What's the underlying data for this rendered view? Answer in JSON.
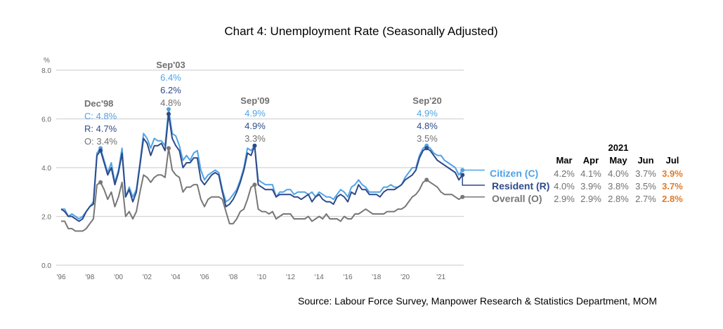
{
  "chart_data": {
    "type": "line",
    "title": "Chart 4: Unemployment Rate (Seasonally Adjusted)",
    "ylabel": "%",
    "ylim": [
      0,
      8
    ],
    "yticks": [
      "0.0",
      "2.0",
      "4.0",
      "6.0",
      "8.0"
    ],
    "ytick_values": [
      0,
      2,
      4,
      6,
      8
    ],
    "grid": true,
    "x_note": "quarterly 1996Q1-2019Q4, monthly Mar 2020-Jul 2021",
    "xticks": [
      {
        "label": "'96",
        "index": 0
      },
      {
        "label": "'98",
        "index": 8
      },
      {
        "label": "'00",
        "index": 16
      },
      {
        "label": "'02",
        "index": 24
      },
      {
        "label": "'04",
        "index": 32
      },
      {
        "label": "'06",
        "index": 40
      },
      {
        "label": "'08",
        "index": 48
      },
      {
        "label": "'10",
        "index": 56
      },
      {
        "label": "'12",
        "index": 64
      },
      {
        "label": "'14",
        "index": 72
      },
      {
        "label": "'16",
        "index": 80
      },
      {
        "label": "'18",
        "index": 88
      },
      {
        "label": "'20",
        "index": 96
      },
      {
        "label": "'21",
        "index": 106
      }
    ],
    "series": [
      {
        "name": "Citizen (C)",
        "color": "#4fa3e6",
        "values": [
          2.3,
          2.3,
          2.0,
          2.1,
          2.0,
          1.9,
          2.0,
          2.2,
          2.4,
          2.6,
          4.6,
          4.8,
          4.3,
          3.8,
          4.2,
          3.4,
          3.9,
          4.8,
          2.8,
          3.2,
          2.8,
          3.1,
          4.2,
          5.4,
          5.2,
          4.8,
          5.2,
          5.1,
          5.1,
          4.9,
          6.4,
          5.4,
          5.3,
          4.9,
          4.3,
          4.5,
          4.3,
          4.6,
          4.7,
          3.9,
          3.5,
          3.7,
          3.8,
          3.9,
          3.8,
          3.1,
          2.6,
          2.7,
          2.9,
          3.1,
          3.5,
          4.0,
          4.8,
          4.7,
          4.9,
          3.5,
          3.4,
          3.3,
          3.3,
          3.3,
          2.8,
          3.0,
          3.0,
          3.1,
          3.1,
          2.9,
          3.0,
          3.0,
          3.0,
          2.9,
          3.0,
          2.8,
          3.0,
          2.9,
          2.8,
          2.8,
          2.7,
          2.9,
          3.1,
          3.0,
          2.8,
          3.2,
          3.3,
          3.5,
          3.3,
          3.2,
          3.0,
          3.0,
          3.0,
          3.0,
          3.2,
          3.2,
          3.3,
          3.2,
          3.2,
          3.3,
          3.6,
          3.8,
          4.0,
          4.0,
          4.5,
          4.8,
          4.9,
          4.8,
          4.6,
          4.5,
          4.5,
          4.3,
          4.2,
          4.1,
          4.0,
          3.7,
          3.9
        ]
      },
      {
        "name": "Resident (R)",
        "color": "#2e4a8a",
        "values": [
          2.3,
          2.2,
          2.0,
          2.0,
          1.9,
          1.8,
          1.9,
          2.2,
          2.4,
          2.5,
          4.5,
          4.7,
          4.2,
          3.7,
          4.0,
          3.3,
          3.8,
          4.6,
          2.8,
          3.1,
          2.6,
          3.0,
          4.1,
          5.2,
          5.0,
          4.5,
          4.9,
          4.9,
          5.0,
          4.7,
          6.2,
          5.2,
          4.9,
          4.7,
          4.0,
          4.2,
          4.2,
          4.4,
          4.4,
          3.5,
          3.3,
          3.5,
          3.7,
          3.8,
          3.7,
          3.0,
          2.4,
          2.5,
          2.7,
          3.0,
          3.4,
          3.9,
          4.6,
          4.5,
          4.9,
          3.3,
          3.2,
          3.1,
          3.1,
          3.1,
          2.8,
          2.9,
          2.9,
          2.9,
          2.9,
          2.8,
          2.8,
          2.7,
          2.8,
          2.9,
          2.6,
          2.8,
          2.9,
          2.7,
          2.6,
          2.6,
          2.5,
          2.8,
          2.9,
          2.8,
          2.6,
          3.0,
          2.9,
          3.3,
          3.1,
          3.1,
          2.9,
          2.9,
          2.9,
          2.8,
          3.0,
          3.1,
          3.1,
          3.1,
          3.2,
          3.3,
          3.5,
          3.6,
          3.7,
          3.9,
          4.4,
          4.7,
          4.8,
          4.7,
          4.5,
          4.3,
          4.2,
          4.1,
          4.0,
          3.9,
          3.8,
          3.5,
          3.7
        ]
      },
      {
        "name": "Overall (O)",
        "color": "#777777",
        "values": [
          1.8,
          1.8,
          1.5,
          1.5,
          1.4,
          1.4,
          1.4,
          1.5,
          1.7,
          1.9,
          3.3,
          3.4,
          3.1,
          2.7,
          3.0,
          2.4,
          2.8,
          3.4,
          2.0,
          2.2,
          1.9,
          2.2,
          3.0,
          3.7,
          3.6,
          3.4,
          3.6,
          3.7,
          3.7,
          3.6,
          4.8,
          3.9,
          3.7,
          3.6,
          3.0,
          3.2,
          3.2,
          3.3,
          3.3,
          2.7,
          2.4,
          2.7,
          2.8,
          2.8,
          2.8,
          2.7,
          2.2,
          1.7,
          1.7,
          1.9,
          2.2,
          2.3,
          2.7,
          3.2,
          3.3,
          2.3,
          2.2,
          2.2,
          2.1,
          2.2,
          1.9,
          2.0,
          2.1,
          2.1,
          2.1,
          1.9,
          1.9,
          1.9,
          1.9,
          2.0,
          1.8,
          1.9,
          2.0,
          1.9,
          2.1,
          1.9,
          1.9,
          1.9,
          1.8,
          2.0,
          1.9,
          1.9,
          2.1,
          2.1,
          2.2,
          2.3,
          2.2,
          2.1,
          2.1,
          2.1,
          2.1,
          2.2,
          2.2,
          2.2,
          2.3,
          2.3,
          2.4,
          2.6,
          2.8,
          2.9,
          3.1,
          3.4,
          3.5,
          3.4,
          3.3,
          3.2,
          3.0,
          2.9,
          2.9,
          2.9,
          2.8,
          2.7,
          2.8
        ]
      }
    ],
    "annotations": [
      {
        "label": "Dec'98",
        "index": 11,
        "c": "C: 4.8%",
        "r": "R: 4.7%",
        "o": "O: 3.4%"
      },
      {
        "label": "Sep'03",
        "index": 30,
        "c": "6.4%",
        "r": "6.2%",
        "o": "4.8%"
      },
      {
        "label": "Sep'09",
        "index": 54,
        "c": "4.9%",
        "r": "4.9%",
        "o": "3.3%"
      },
      {
        "label": "Sep'20",
        "index": 102,
        "c": "4.9%",
        "r": "4.8%",
        "o": "3.5%"
      }
    ],
    "legend": [
      "Citizen (C)",
      "Resident (R)",
      "Overall (O)"
    ],
    "table": {
      "year": "2021",
      "months": [
        "Mar",
        "Apr",
        "May",
        "Jun",
        "Jul"
      ],
      "rows": [
        [
          "4.2%",
          "4.1%",
          "4.0%",
          "3.7%",
          "3.9%"
        ],
        [
          "4.0%",
          "3.9%",
          "3.8%",
          "3.5%",
          "3.7%"
        ],
        [
          "2.9%",
          "2.9%",
          "2.8%",
          "2.7%",
          "2.8%"
        ]
      ],
      "highlight_color": "#e07b2a"
    },
    "source": "Source: Labour Force Survey, Manpower Research & Statistics Department, MOM"
  }
}
